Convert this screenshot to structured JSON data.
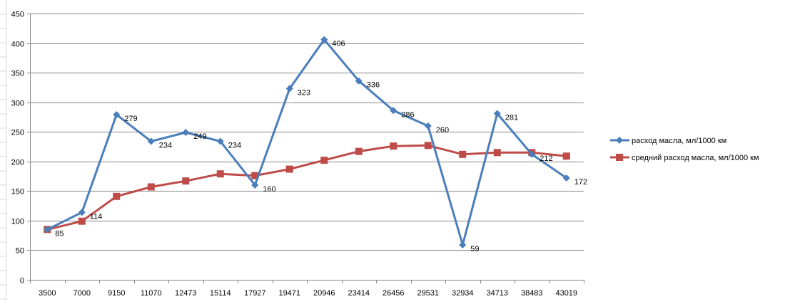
{
  "chart_data": {
    "type": "line",
    "title": "",
    "xlabel": "",
    "ylabel": "",
    "categories": [
      "3500",
      "7000",
      "9150",
      "11070",
      "12473",
      "15114",
      "17927",
      "19471",
      "20946",
      "23414",
      "26456",
      "29531",
      "32934",
      "34713",
      "38483",
      "43019"
    ],
    "ylim": [
      0,
      450
    ],
    "yticks": [
      0,
      50,
      100,
      150,
      200,
      250,
      300,
      350,
      400,
      450
    ],
    "grid": true,
    "legend_position": "right",
    "series": [
      {
        "name": "расход масла, мл/1000 км",
        "color": "#4A7EBB",
        "marker": "diamond",
        "values": [
          85,
          114,
          279,
          234,
          249,
          234,
          160,
          323,
          406,
          336,
          286,
          260,
          59,
          281,
          212,
          172
        ],
        "data_labels": [
          "85",
          "114",
          "279",
          "234",
          "249",
          "234",
          "160",
          "323",
          "406",
          "336",
          "286",
          "260",
          "59",
          "281",
          "212",
          "172"
        ]
      },
      {
        "name": "средний расход масла, мл/1000 км",
        "color": "#BE4B48",
        "marker": "square",
        "values": [
          85,
          99,
          141,
          157,
          167,
          179,
          176,
          187,
          202,
          217,
          226,
          227,
          212,
          215,
          215,
          209
        ]
      }
    ]
  }
}
